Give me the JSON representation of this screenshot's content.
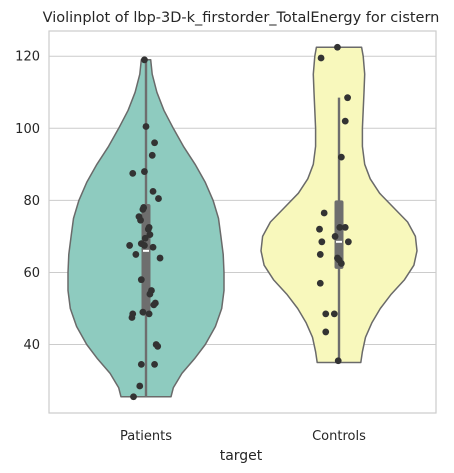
{
  "chart_data": {
    "type": "violin",
    "title": "Violinplot of lbp-3D-k_firstorder_TotalEnergy for cistern",
    "xlabel": "target",
    "ylabel": "",
    "ylim": [
      21,
      127
    ],
    "yticks": [
      40,
      60,
      80,
      100,
      120
    ],
    "grid": "horizontal",
    "categories": [
      "Patients",
      "Controls"
    ],
    "colors": {
      "Patients": "#8ecbbf",
      "Controls": "#f8f8bc",
      "outline": "#6a6a6a",
      "points": "#333333",
      "box": "#6e6e6e"
    },
    "series": [
      {
        "category": "Patients",
        "extent": [
          25.5,
          119
        ],
        "box": {
          "q1": 48,
          "median": 66,
          "q3": 79,
          "whisker_low": 25.5,
          "whisker_high": 119
        },
        "density_halfwidth": [
          [
            25.5,
            0.32
          ],
          [
            28,
            0.35
          ],
          [
            32,
            0.46
          ],
          [
            36,
            0.62
          ],
          [
            40,
            0.76
          ],
          [
            45,
            0.89
          ],
          [
            50,
            0.97
          ],
          [
            55,
            1.0
          ],
          [
            60,
            1.0
          ],
          [
            65,
            0.99
          ],
          [
            70,
            0.96
          ],
          [
            75,
            0.93
          ],
          [
            80,
            0.86
          ],
          [
            85,
            0.76
          ],
          [
            90,
            0.63
          ],
          [
            95,
            0.48
          ],
          [
            100,
            0.35
          ],
          [
            105,
            0.23
          ],
          [
            110,
            0.14
          ],
          [
            115,
            0.08
          ],
          [
            119,
            0.06
          ]
        ],
        "points": [
          [
            119,
            -0.02
          ],
          [
            100.5,
            0.0
          ],
          [
            96,
            0.11
          ],
          [
            92.5,
            0.08
          ],
          [
            88,
            -0.02
          ],
          [
            87.5,
            -0.17
          ],
          [
            82.5,
            0.09
          ],
          [
            80.5,
            0.16
          ],
          [
            78,
            -0.03
          ],
          [
            77.5,
            -0.04
          ],
          [
            75.5,
            -0.09
          ],
          [
            74.5,
            -0.07
          ],
          [
            72.5,
            0.04
          ],
          [
            72,
            0.03
          ],
          [
            70.5,
            0.05
          ],
          [
            69.5,
            -0.01
          ],
          [
            68,
            -0.06
          ],
          [
            67.5,
            -0.02
          ],
          [
            67.5,
            -0.21
          ],
          [
            67,
            0.09
          ],
          [
            65,
            -0.13
          ],
          [
            64,
            0.18
          ],
          [
            58,
            -0.06
          ],
          [
            55,
            0.07
          ],
          [
            54,
            0.05
          ],
          [
            51.5,
            0.12
          ],
          [
            51,
            0.1
          ],
          [
            49,
            -0.04
          ],
          [
            48.5,
            0.04
          ],
          [
            48.5,
            -0.17
          ],
          [
            47.5,
            -0.18
          ],
          [
            40,
            0.13
          ],
          [
            39.5,
            0.15
          ],
          [
            34.5,
            -0.06
          ],
          [
            34.5,
            0.11
          ],
          [
            28.5,
            -0.08
          ],
          [
            25.5,
            -0.16
          ]
        ]
      },
      {
        "category": "Controls",
        "extent": [
          35,
          122.5
        ],
        "box": {
          "q1": 61,
          "median": 68.5,
          "q3": 80,
          "whisker_low": 35,
          "whisker_high": 108.5
        },
        "density_halfwidth": [
          [
            35,
            0.28
          ],
          [
            38,
            0.3
          ],
          [
            42,
            0.34
          ],
          [
            46,
            0.42
          ],
          [
            50,
            0.53
          ],
          [
            54,
            0.67
          ],
          [
            58,
            0.84
          ],
          [
            62,
            0.96
          ],
          [
            66,
            1.0
          ],
          [
            70,
            0.98
          ],
          [
            74,
            0.88
          ],
          [
            78,
            0.7
          ],
          [
            82,
            0.52
          ],
          [
            86,
            0.4
          ],
          [
            90,
            0.33
          ],
          [
            95,
            0.3
          ],
          [
            100,
            0.3
          ],
          [
            105,
            0.31
          ],
          [
            110,
            0.32
          ],
          [
            115,
            0.33
          ],
          [
            120,
            0.31
          ],
          [
            122.5,
            0.29
          ]
        ],
        "points": [
          [
            122.5,
            -0.02
          ],
          [
            119.5,
            -0.23
          ],
          [
            108.5,
            0.11
          ],
          [
            102,
            0.08
          ],
          [
            92,
            0.03
          ],
          [
            76.5,
            -0.19
          ],
          [
            72.5,
            0.01
          ],
          [
            72.5,
            0.08
          ],
          [
            72,
            -0.25
          ],
          [
            70,
            -0.05
          ],
          [
            68.5,
            -0.22
          ],
          [
            68.5,
            0.12
          ],
          [
            65,
            -0.24
          ],
          [
            64,
            -0.02
          ],
          [
            63.5,
            0.0
          ],
          [
            62.5,
            0.03
          ],
          [
            57,
            -0.24
          ],
          [
            48.5,
            -0.17
          ],
          [
            48.5,
            -0.06
          ],
          [
            43.5,
            -0.17
          ],
          [
            35.5,
            -0.01
          ]
        ]
      }
    ]
  }
}
